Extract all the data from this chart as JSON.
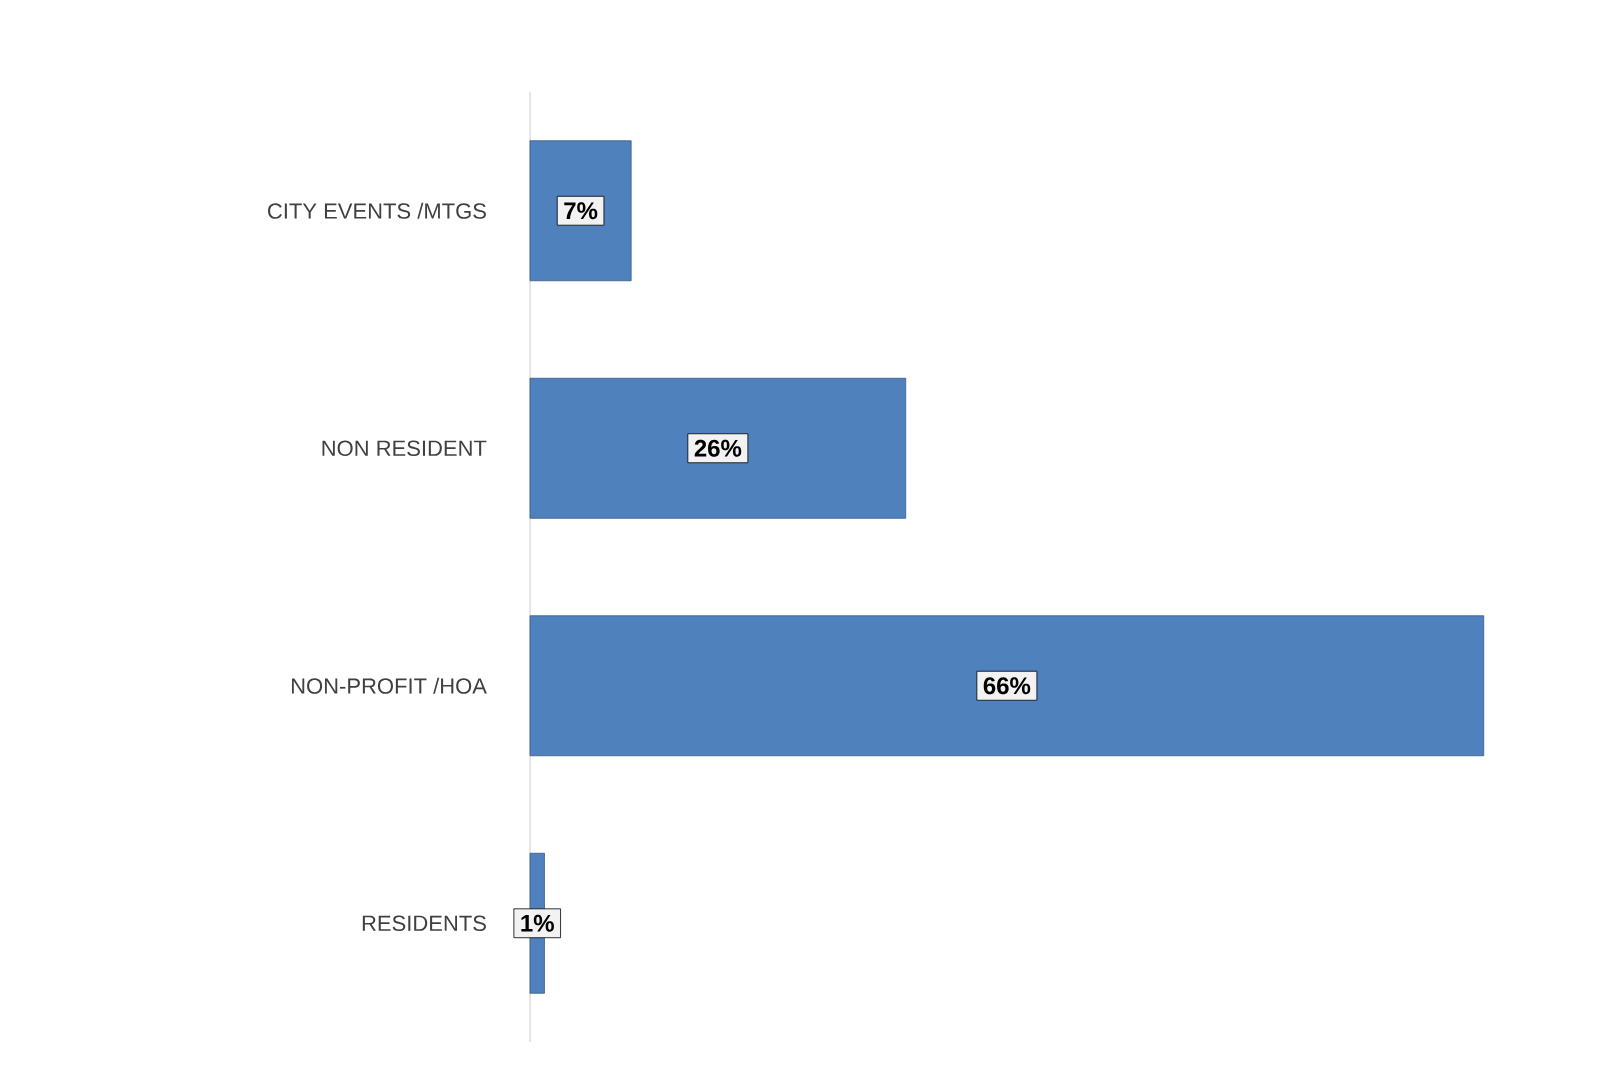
{
  "chart_data": {
    "type": "bar",
    "orientation": "horizontal",
    "categories": [
      "CITY EVENTS /MTGS",
      "NON RESIDENT",
      "NON-PROFIT /HOA",
      "RESIDENTS"
    ],
    "values": [
      7,
      26,
      66,
      1
    ],
    "value_labels": [
      "7%",
      "26%",
      "66%",
      "1%"
    ],
    "color": "#4f81bd"
  }
}
